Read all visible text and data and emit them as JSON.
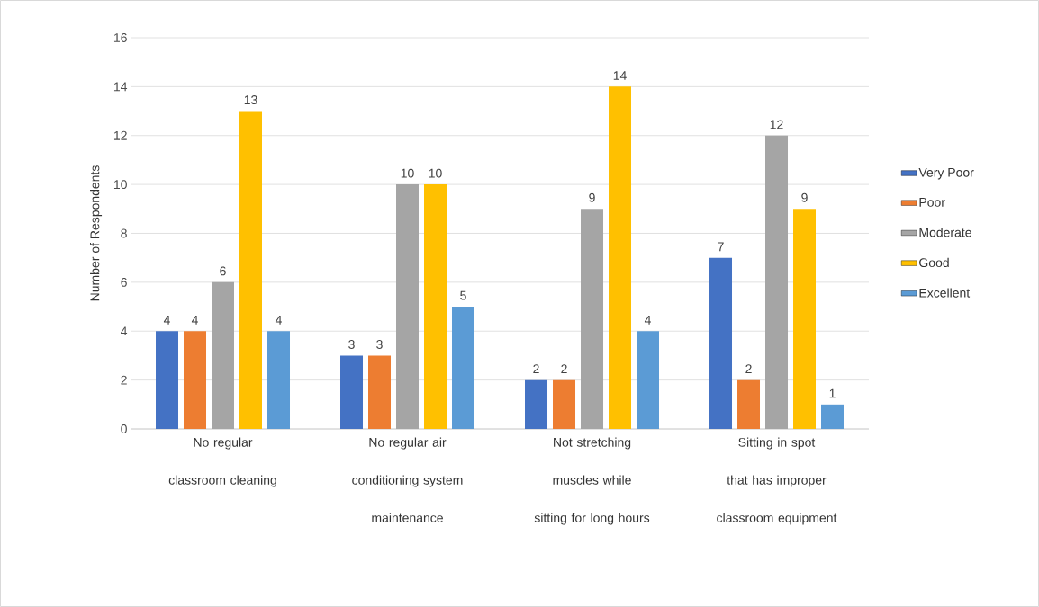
{
  "chart_data": {
    "type": "bar",
    "ylabel": "Number of Respondents",
    "categories": [
      "No regular classroom cleaning",
      "No regular air conditioning system maintenance",
      "Not stretching muscles while sitting for long hours",
      "Sitting in spot that has improper classroom equipment"
    ],
    "series": [
      {
        "name": "Very Poor",
        "color": "#4472c4",
        "values": [
          4,
          3,
          2,
          7
        ]
      },
      {
        "name": "Poor",
        "color": "#ed7d31",
        "values": [
          4,
          3,
          2,
          2
        ]
      },
      {
        "name": "Moderate",
        "color": "#a5a5a5",
        "values": [
          6,
          10,
          9,
          12
        ]
      },
      {
        "name": "Good",
        "color": "#ffc000",
        "values": [
          13,
          10,
          14,
          9
        ]
      },
      {
        "name": "Excellent",
        "color": "#5b9bd5",
        "values": [
          4,
          5,
          4,
          1
        ]
      }
    ],
    "ylim": [
      0,
      16
    ],
    "yticks": [
      0,
      2,
      4,
      6,
      8,
      10,
      12,
      14,
      16
    ],
    "grid": "y",
    "legend": "right",
    "data_labels": true
  }
}
